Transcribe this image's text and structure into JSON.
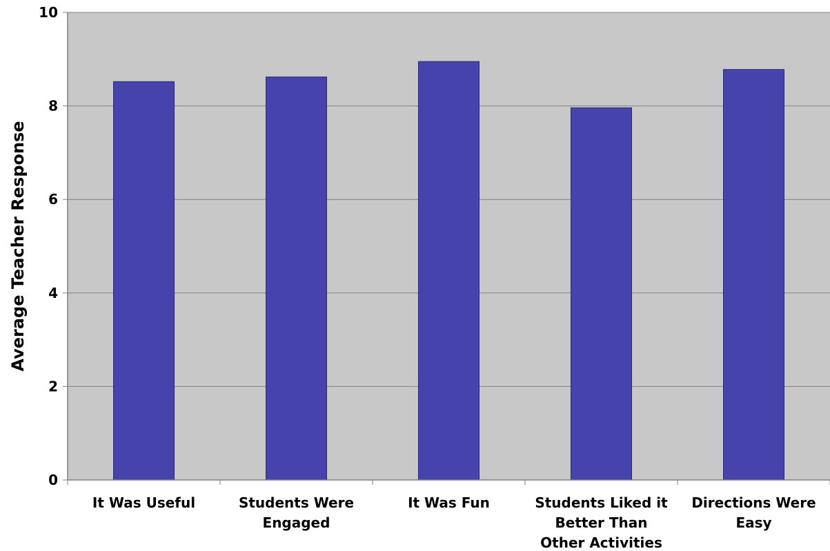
{
  "chart_data": {
    "type": "bar",
    "categories": [
      [
        "It Was Useful"
      ],
      [
        "Students Were",
        "Engaged"
      ],
      [
        "It Was Fun"
      ],
      [
        "Students Liked it",
        "Better Than",
        "Other Activities"
      ],
      [
        "Directions Were",
        "Easy"
      ]
    ],
    "values": [
      8.52,
      8.62,
      8.95,
      7.96,
      8.78
    ],
    "ylabel": "Average Teacher Response",
    "xlabel": "",
    "ylim": [
      0,
      10
    ],
    "yticks": [
      0,
      2,
      4,
      6,
      8,
      10
    ],
    "grid": true,
    "colors": {
      "bar": "#4743ad",
      "bar_edge": "#2c2a75",
      "plot_bg": "#c8c8c8",
      "gridline": "#808080"
    }
  }
}
